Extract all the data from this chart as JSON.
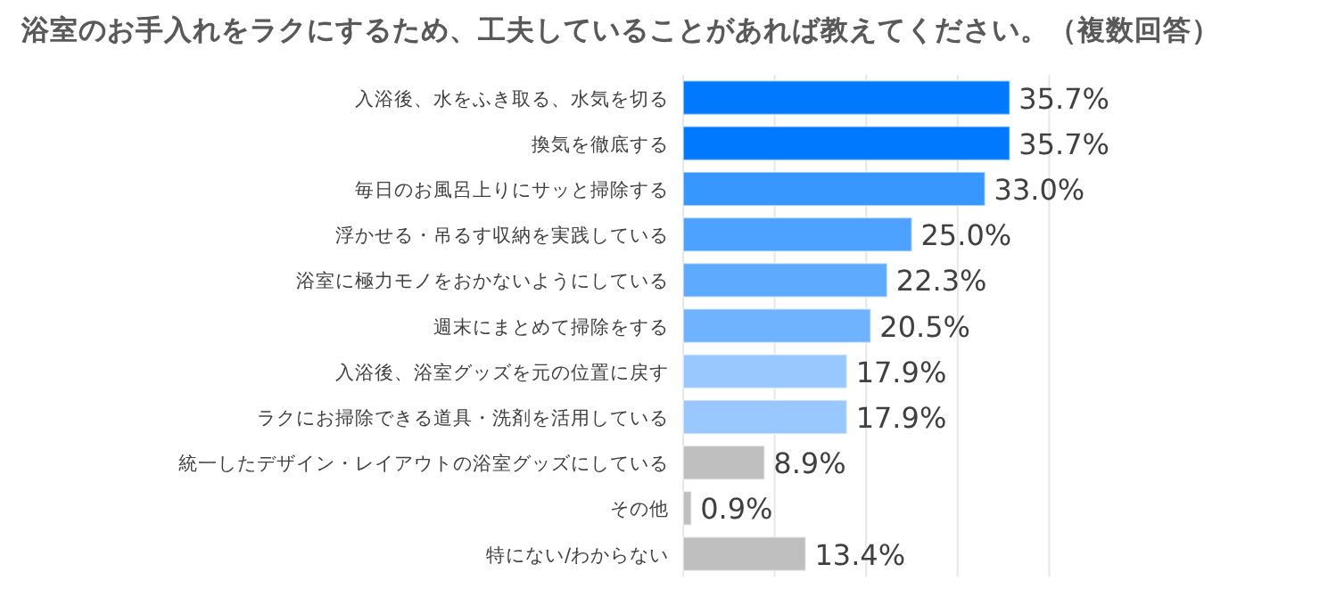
{
  "chart_data": {
    "type": "bar",
    "orientation": "horizontal",
    "title": "浴室のお手入れをラクにするため、工夫していることがあれば教えてください。（複数回答）",
    "categories": [
      "入浴後、水をふき取る、水気を切る",
      "換気を徹底する",
      "毎日のお風呂上りにサッと掃除する",
      "浮かせる・吊るす収納を実践している",
      "浴室に極力モノをおかないようにしている",
      "週末にまとめて掃除をする",
      "入浴後、浴室グッズを元の位置に戻す",
      "ラクにお掃除できる道具・洗剤を活用している",
      "統一したデザイン・レイアウトの浴室グッズにしている",
      "その他",
      "特にない/わからない"
    ],
    "values": [
      35.7,
      35.7,
      33.0,
      25.0,
      22.3,
      20.5,
      17.9,
      17.9,
      8.9,
      0.9,
      13.4
    ],
    "value_labels": [
      "35.7%",
      "35.7%",
      "33.0%",
      "25.0%",
      "22.3%",
      "20.5%",
      "17.9%",
      "17.9%",
      "8.9%",
      "0.9%",
      "13.4%"
    ],
    "colors": [
      "#0079ff",
      "#0079ff",
      "#3797ff",
      "#4ea2ff",
      "#5eaaff",
      "#6fb3ff",
      "#99c8ff",
      "#99c8ff",
      "#bfbfbf",
      "#bfbfbf",
      "#bfbfbf"
    ],
    "xlim": [
      0,
      40
    ],
    "xticks": [
      {
        "value": 0,
        "label": null
      },
      {
        "value": 10,
        "label": null
      },
      {
        "value": 20,
        "label": null
      },
      {
        "value": 30,
        "label": null
      },
      {
        "value": 40,
        "label": null
      }
    ],
    "grid": "x",
    "tick_labels": "y"
  }
}
